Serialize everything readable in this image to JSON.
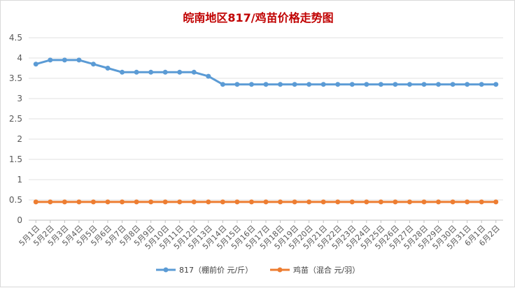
{
  "chart_data": {
    "type": "line",
    "title": "皖南地区817/鸡苗价格走势图",
    "xlabel": "",
    "ylabel": "",
    "ylim": [
      0,
      4.5
    ],
    "yticks": [
      "0",
      "0.5",
      "1",
      "1.5",
      "2",
      "2.5",
      "3",
      "3.5",
      "4",
      "4.5"
    ],
    "grid": true,
    "legend_position": "bottom",
    "categories": [
      "5月1日",
      "5月2日",
      "5月3日",
      "5月4日",
      "5月5日",
      "5月6日",
      "5月7日",
      "5月8日",
      "5月9日",
      "5月10日",
      "5月11日",
      "5月12日",
      "5月13日",
      "5月14日",
      "5月15日",
      "5月16日",
      "5月17日",
      "5月18日",
      "5月19日",
      "5月20日",
      "5月21日",
      "5月22日",
      "5月23日",
      "5月24日",
      "5月25日",
      "5月26日",
      "5月27日",
      "5月28日",
      "5月29日",
      "5月30日",
      "5月31日",
      "6月1日",
      "6月2日"
    ],
    "series": [
      {
        "name": "817（棚前价 元/斤）",
        "color": "#5b9bd5",
        "values": [
          3.85,
          3.95,
          3.95,
          3.95,
          3.85,
          3.75,
          3.65,
          3.65,
          3.65,
          3.65,
          3.65,
          3.65,
          3.55,
          3.35,
          3.35,
          3.35,
          3.35,
          3.35,
          3.35,
          3.35,
          3.35,
          3.35,
          3.35,
          3.35,
          3.35,
          3.35,
          3.35,
          3.35,
          3.35,
          3.35,
          3.35,
          3.35,
          3.35
        ]
      },
      {
        "name": "鸡苗（混合 元/羽）",
        "color": "#ed7d31",
        "values": [
          0.45,
          0.45,
          0.45,
          0.45,
          0.45,
          0.45,
          0.45,
          0.45,
          0.45,
          0.45,
          0.45,
          0.45,
          0.45,
          0.45,
          0.45,
          0.45,
          0.45,
          0.45,
          0.45,
          0.45,
          0.45,
          0.45,
          0.45,
          0.45,
          0.45,
          0.45,
          0.45,
          0.45,
          0.45,
          0.45,
          0.45,
          0.45,
          0.45
        ]
      }
    ]
  }
}
